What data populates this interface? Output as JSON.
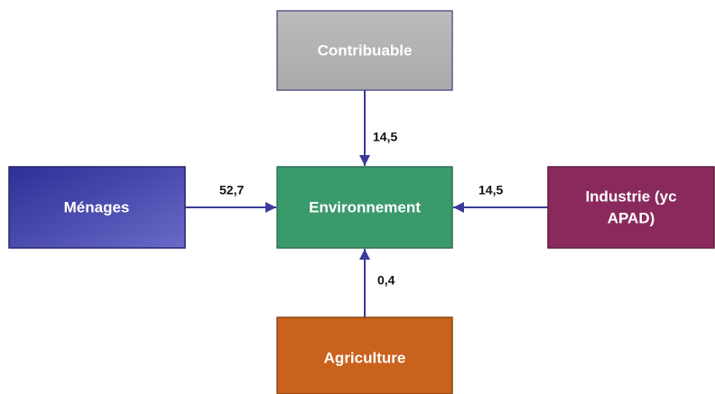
{
  "nodes": [
    {
      "label": "Contribuable"
    },
    {
      "label": "Environnement"
    },
    {
      "label": "Ménages"
    },
    {
      "label": [
        "Industrie (yc",
        "APAD)"
      ]
    },
    {
      "label": "Agriculture"
    }
  ],
  "edges": [
    {
      "label": "14,5"
    },
    {
      "label": "52,7"
    },
    {
      "label": "14,5"
    },
    {
      "label": "0,4"
    }
  ]
}
